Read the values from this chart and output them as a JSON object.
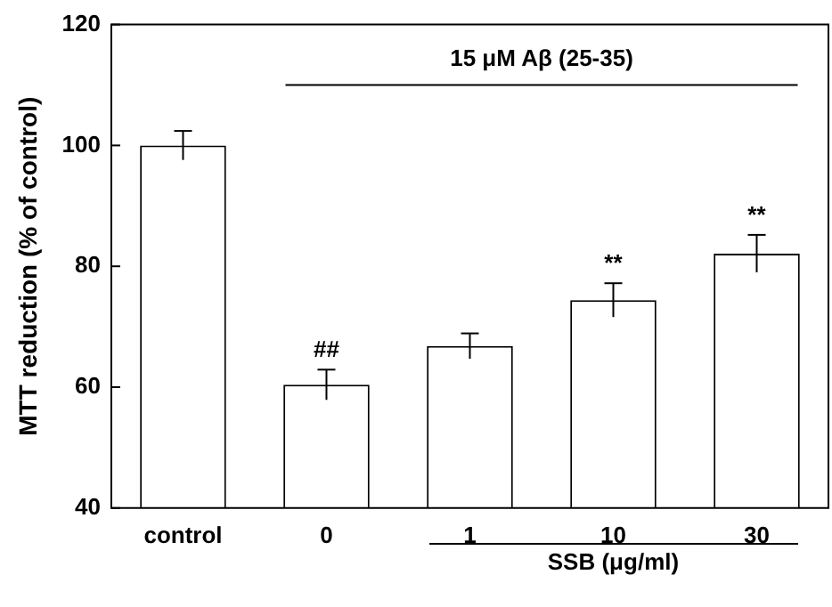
{
  "chart_data": {
    "type": "bar",
    "ylabel": "MTT reduction (% of control)",
    "categories": [
      "control",
      "0",
      "1",
      "10",
      "30"
    ],
    "values": [
      100,
      60.4,
      66.8,
      74.4,
      82.1
    ],
    "errors": [
      2.4,
      2.5,
      2.1,
      2.8,
      3.1
    ],
    "colors": [
      "#ffffff",
      "#ffffff",
      "#ffffff",
      "#ffffff",
      "#ffffff"
    ],
    "ylim": [
      40,
      120
    ],
    "yticks": [
      40,
      60,
      80,
      100,
      120
    ],
    "grid": false,
    "legend": false,
    "ref_lines": [
      {
        "axis": "y",
        "value": 110,
        "label": "15 μM Aβ (25-35)"
      }
    ],
    "annotations": [
      "SSB (μg/ml)",
      "##",
      "**",
      "**"
    ]
  }
}
